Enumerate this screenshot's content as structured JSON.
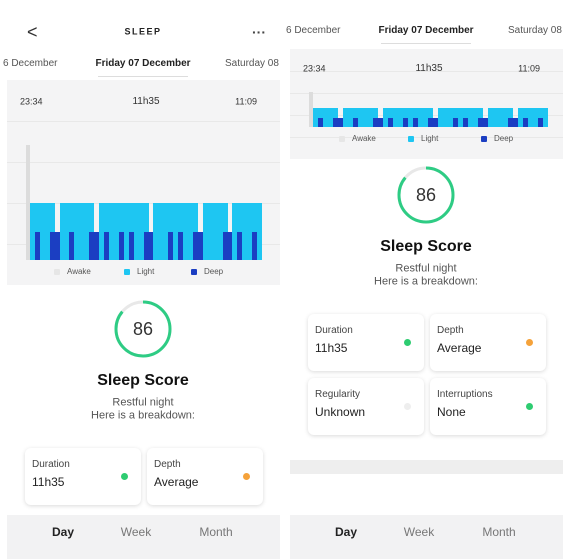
{
  "left": {
    "header": {
      "back": "<",
      "title": "SLEEP",
      "menu": "···"
    },
    "dates": {
      "prev": "6 December",
      "current": "Friday 07 December",
      "next": "Saturday 08"
    },
    "chart": {
      "start": "23:34",
      "duration": "11h35",
      "end": "11:09",
      "legend": [
        {
          "name": "Awake",
          "color": "#e6e6e6"
        },
        {
          "name": "Light",
          "color": "#1ec6f2"
        },
        {
          "name": "Deep",
          "color": "#1b3ec2"
        }
      ]
    },
    "score": {
      "value": 86,
      "ring_color": "#2ecc84",
      "label": "Sleep Score",
      "summary": "Restful night",
      "prompt": "Here is a breakdown:"
    },
    "cards": [
      {
        "label": "Duration",
        "value": "11h35",
        "dot": "#2ecc71"
      },
      {
        "label": "Depth",
        "value": "Average",
        "dot": "#f5a23a"
      }
    ],
    "tabs": [
      "Day",
      "Week",
      "Month"
    ]
  },
  "right": {
    "dates": {
      "prev": "6 December",
      "current": "Friday 07 December",
      "next": "Saturday 08"
    },
    "chart": {
      "start": "23:34",
      "duration": "11h35",
      "end": "11:09",
      "legend": [
        {
          "name": "Awake",
          "color": "#e6e6e6"
        },
        {
          "name": "Light",
          "color": "#1ec6f2"
        },
        {
          "name": "Deep",
          "color": "#1b3ec2"
        }
      ]
    },
    "score": {
      "value": 86,
      "ring_color": "#2ecc84",
      "label": "Sleep Score",
      "summary": "Restful night",
      "prompt": "Here is a breakdown:"
    },
    "cards": [
      {
        "label": "Duration",
        "value": "11h35",
        "dot": "#2ecc71"
      },
      {
        "label": "Depth",
        "value": "Average",
        "dot": "#f5a23a"
      },
      {
        "label": "Regularity",
        "value": "Unknown",
        "dot": "#eeeeee"
      },
      {
        "label": "Interruptions",
        "value": "None",
        "dot": "#2ecc71"
      }
    ],
    "tabs": [
      "Day",
      "Week",
      "Month"
    ]
  }
}
